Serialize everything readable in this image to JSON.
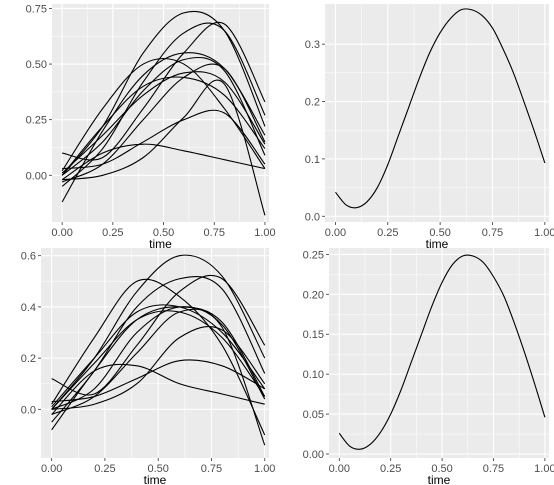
{
  "chart_data": [
    {
      "id": "top-left",
      "type": "line",
      "xlabel": "time",
      "ylabel": "",
      "xlim": [
        -0.05,
        1.02
      ],
      "ylim": [
        -0.21,
        0.77
      ],
      "xticks": [
        0,
        0.25,
        0.5,
        0.75,
        1
      ],
      "xtick_labels": [
        "0.00",
        "0.25",
        "0.50",
        "0.75",
        "1.00"
      ],
      "yticks": [
        0,
        0.25,
        0.5,
        0.75
      ],
      "ytick_labels": [
        "0.00",
        "0.25",
        "0.50",
        "0.75"
      ],
      "grid": true,
      "series": [
        {
          "x": [
            0,
            0.2,
            0.4,
            0.6,
            0.8,
            1.0
          ],
          "y": [
            0.0,
            0.22,
            0.55,
            0.73,
            0.65,
            0.22
          ]
        },
        {
          "x": [
            0,
            0.2,
            0.4,
            0.6,
            0.8,
            1.0
          ],
          "y": [
            -0.05,
            0.12,
            0.42,
            0.64,
            0.65,
            0.27
          ]
        },
        {
          "x": [
            0,
            0.2,
            0.4,
            0.6,
            0.8,
            1.0
          ],
          "y": [
            0.1,
            0.08,
            0.3,
            0.55,
            0.68,
            0.33
          ]
        },
        {
          "x": [
            0,
            0.2,
            0.4,
            0.6,
            0.8,
            1.0
          ],
          "y": [
            0.02,
            0.3,
            0.5,
            0.5,
            0.3,
            0.03
          ]
        },
        {
          "x": [
            0,
            0.2,
            0.4,
            0.6,
            0.8,
            1.0
          ],
          "y": [
            -0.12,
            0.2,
            0.45,
            0.55,
            0.48,
            0.18
          ]
        },
        {
          "x": [
            0,
            0.2,
            0.4,
            0.6,
            0.8,
            1.0
          ],
          "y": [
            0.0,
            0.22,
            0.4,
            0.44,
            0.36,
            0.12
          ]
        },
        {
          "x": [
            0,
            0.2,
            0.4,
            0.6,
            0.8,
            1.0
          ],
          "y": [
            -0.03,
            0.05,
            0.25,
            0.44,
            0.48,
            0.15
          ]
        },
        {
          "x": [
            0,
            0.2,
            0.4,
            0.6,
            0.8,
            1.0
          ],
          "y": [
            0.01,
            0.18,
            0.36,
            0.46,
            0.42,
            0.14
          ]
        },
        {
          "x": [
            0,
            0.2,
            0.4,
            0.6,
            0.8,
            1.0
          ],
          "y": [
            -0.02,
            0.0,
            0.08,
            0.26,
            0.41,
            -0.18
          ]
        },
        {
          "x": [
            0,
            0.2,
            0.4,
            0.6,
            0.8,
            1.0
          ],
          "y": [
            0.03,
            0.05,
            0.15,
            0.25,
            0.28,
            0.05
          ]
        },
        {
          "x": [
            0,
            0.2,
            0.4,
            0.6,
            0.8,
            1.0
          ],
          "y": [
            -0.02,
            0.1,
            0.14,
            0.11,
            0.07,
            0.03
          ]
        },
        {
          "x": [
            0,
            0.2,
            0.4,
            0.6,
            0.8,
            1.0
          ],
          "y": [
            0.0,
            0.15,
            0.38,
            0.52,
            0.47,
            0.09
          ]
        }
      ]
    },
    {
      "id": "top-right",
      "type": "line",
      "xlabel": "time",
      "ylabel": "",
      "xlim": [
        -0.05,
        1.02
      ],
      "ylim": [
        -0.01,
        0.37
      ],
      "xticks": [
        0,
        0.25,
        0.5,
        0.75,
        1
      ],
      "xtick_labels": [
        "0.00",
        "0.25",
        "0.50",
        "0.75",
        "1.00"
      ],
      "yticks": [
        0,
        0.1,
        0.2,
        0.3
      ],
      "ytick_labels": [
        "0.0",
        "0.1",
        "0.2",
        "0.3"
      ],
      "grid": true,
      "series": [
        {
          "x": [
            0,
            0.05,
            0.1,
            0.15,
            0.2,
            0.25,
            0.3,
            0.35,
            0.4,
            0.45,
            0.5,
            0.55,
            0.6,
            0.65,
            0.7,
            0.75,
            0.8,
            0.85,
            0.9,
            0.95,
            1.0
          ],
          "y": [
            0.042,
            0.02,
            0.015,
            0.025,
            0.05,
            0.09,
            0.14,
            0.19,
            0.24,
            0.285,
            0.32,
            0.345,
            0.36,
            0.36,
            0.35,
            0.328,
            0.292,
            0.25,
            0.2,
            0.148,
            0.093
          ]
        }
      ]
    },
    {
      "id": "bottom-left",
      "type": "line",
      "xlabel": "time",
      "ylabel": "",
      "xlim": [
        -0.05,
        1.02
      ],
      "ylim": [
        -0.19,
        0.63
      ],
      "xticks": [
        0,
        0.25,
        0.5,
        0.75,
        1
      ],
      "xtick_labels": [
        "0.00",
        "0.25",
        "0.50",
        "0.75",
        "1.00"
      ],
      "yticks": [
        0,
        0.2,
        0.4,
        0.6
      ],
      "ytick_labels": [
        "0.0",
        "0.2",
        "0.4",
        "0.6"
      ],
      "grid": true,
      "series": [
        {
          "x": [
            0,
            0.2,
            0.4,
            0.6,
            0.8,
            1.0
          ],
          "y": [
            0.0,
            0.2,
            0.46,
            0.6,
            0.52,
            0.2
          ]
        },
        {
          "x": [
            0,
            0.2,
            0.4,
            0.6,
            0.8,
            1.0
          ],
          "y": [
            -0.05,
            0.15,
            0.4,
            0.51,
            0.47,
            0.14
          ]
        },
        {
          "x": [
            0,
            0.2,
            0.4,
            0.6,
            0.8,
            1.0
          ],
          "y": [
            0.12,
            0.06,
            0.25,
            0.46,
            0.51,
            0.25
          ]
        },
        {
          "x": [
            0,
            0.2,
            0.4,
            0.6,
            0.8,
            1.0
          ],
          "y": [
            0.02,
            0.28,
            0.5,
            0.44,
            0.25,
            -0.1
          ]
        },
        {
          "x": [
            0,
            0.2,
            0.4,
            0.6,
            0.8,
            1.0
          ],
          "y": [
            -0.08,
            0.15,
            0.35,
            0.4,
            0.34,
            0.05
          ]
        },
        {
          "x": [
            0,
            0.2,
            0.4,
            0.6,
            0.8,
            1.0
          ],
          "y": [
            0.0,
            0.18,
            0.35,
            0.38,
            0.28,
            0.05
          ]
        },
        {
          "x": [
            0,
            0.2,
            0.4,
            0.6,
            0.8,
            1.0
          ],
          "y": [
            -0.02,
            0.05,
            0.22,
            0.38,
            0.32,
            -0.14
          ]
        },
        {
          "x": [
            0,
            0.2,
            0.4,
            0.6,
            0.8,
            1.0
          ],
          "y": [
            0.01,
            0.2,
            0.38,
            0.4,
            0.3,
            0.08
          ]
        },
        {
          "x": [
            0,
            0.2,
            0.4,
            0.6,
            0.8,
            1.0
          ],
          "y": [
            0.0,
            0.02,
            0.1,
            0.28,
            0.31,
            0.1
          ]
        },
        {
          "x": [
            0,
            0.2,
            0.4,
            0.6,
            0.8,
            1.0
          ],
          "y": [
            0.03,
            0.05,
            0.12,
            0.19,
            0.17,
            0.08
          ]
        },
        {
          "x": [
            0,
            0.2,
            0.4,
            0.6,
            0.8,
            1.0
          ],
          "y": [
            -0.02,
            0.15,
            0.17,
            0.1,
            0.06,
            0.02
          ]
        },
        {
          "x": [
            0,
            0.2,
            0.4,
            0.6,
            0.8,
            1.0
          ],
          "y": [
            0.0,
            0.08,
            0.3,
            0.4,
            0.33,
            0.04
          ]
        }
      ]
    },
    {
      "id": "bottom-right",
      "type": "line",
      "xlabel": "time",
      "ylabel": "",
      "xlim": [
        -0.05,
        1.02
      ],
      "ylim": [
        -0.005,
        0.258
      ],
      "xticks": [
        0,
        0.25,
        0.5,
        0.75,
        1
      ],
      "xtick_labels": [
        "0.00",
        "0.25",
        "0.50",
        "0.75",
        "1.00"
      ],
      "yticks": [
        0,
        0.05,
        0.1,
        0.15,
        0.2,
        0.25
      ],
      "ytick_labels": [
        "0.00",
        "0.05",
        "0.10",
        "0.15",
        "0.20",
        "0.25"
      ],
      "grid": true,
      "series": [
        {
          "x": [
            0,
            0.05,
            0.1,
            0.15,
            0.2,
            0.25,
            0.3,
            0.35,
            0.4,
            0.45,
            0.5,
            0.55,
            0.6,
            0.65,
            0.7,
            0.75,
            0.8,
            0.85,
            0.9,
            0.95,
            1.0
          ],
          "y": [
            0.026,
            0.01,
            0.006,
            0.012,
            0.027,
            0.05,
            0.08,
            0.115,
            0.15,
            0.185,
            0.215,
            0.237,
            0.248,
            0.248,
            0.24,
            0.222,
            0.198,
            0.165,
            0.128,
            0.088,
            0.046
          ]
        }
      ]
    }
  ]
}
